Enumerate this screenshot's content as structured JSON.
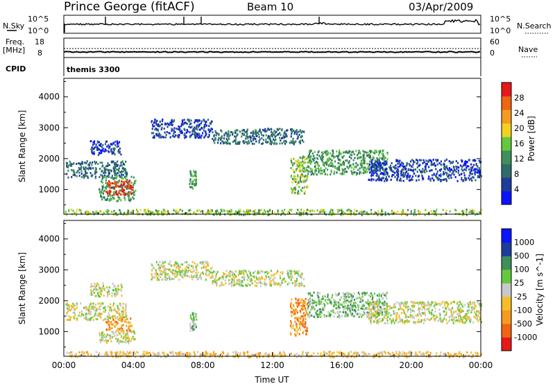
{
  "header": {
    "title": "Prince George (fitACF)",
    "beam": "Beam 10",
    "date": "03/Apr/2009"
  },
  "noise_panel": {
    "left_label": "N.Sky",
    "right_label": "N.Search",
    "left_ticks": [
      "10^5",
      "10^0"
    ],
    "right_ticks": [
      "10^5",
      "10^0"
    ]
  },
  "freq_panel": {
    "left_label_line1": "Freq.",
    "left_label_line2": "[MHz]",
    "right_label": "Nave",
    "left_ticks": [
      "18",
      "8"
    ],
    "right_ticks": [
      "60",
      "0"
    ]
  },
  "cpid_panel": {
    "label": "CPID",
    "program": "themis 3300"
  },
  "colors": {
    "power_scale": [
      "#0a14ff",
      "#1e3c9a",
      "#2f6b6b",
      "#3e8f5a",
      "#64c83c",
      "#f0d020",
      "#f59a1e",
      "#f06414",
      "#e81818"
    ],
    "velocity_scale": [
      "#e81818",
      "#f06414",
      "#f59a1e",
      "#f5be28",
      "#c8c8c8",
      "#64c83c",
      "#3e8f5a",
      "#1e3c9a",
      "#0a14ff"
    ]
  },
  "chart_data": [
    {
      "type": "heatmap",
      "name": "power",
      "ylabel": "Slant Range [km]",
      "colorbar_label": "Power [dB]",
      "colorbar_ticks": [
        "4",
        "8",
        "12",
        "16",
        "20",
        "24",
        "28"
      ],
      "ylim": [
        200,
        4600
      ],
      "y_ticks": [
        "1000",
        "2000",
        "3000",
        "4000"
      ],
      "xlim": [
        0,
        24
      ],
      "x_ticks": [
        "00:00",
        "04:00",
        "08:00",
        "12:00",
        "16:00",
        "20:00",
        "00:00"
      ],
      "echo_regions": [
        {
          "t0": 0.1,
          "t1": 3.6,
          "r0": 1400,
          "r1": 1950,
          "level": 2
        },
        {
          "t0": 1.5,
          "t1": 3.3,
          "r0": 2150,
          "r1": 2600,
          "level": 1
        },
        {
          "t0": 2.0,
          "t1": 4.1,
          "r0": 650,
          "r1": 1450,
          "level": 3
        },
        {
          "t0": 2.4,
          "t1": 3.9,
          "r0": 850,
          "r1": 1300,
          "level": 8
        },
        {
          "t0": 5.0,
          "t1": 8.5,
          "r0": 2700,
          "r1": 3300,
          "level": 1
        },
        {
          "t0": 8.5,
          "t1": 13.8,
          "r0": 2500,
          "r1": 3000,
          "level": 2
        },
        {
          "t0": 7.2,
          "t1": 7.6,
          "r0": 1000,
          "r1": 1650,
          "level": 3
        },
        {
          "t0": 13.0,
          "t1": 14.0,
          "r0": 900,
          "r1": 2100,
          "level": 4
        },
        {
          "t0": 14.0,
          "t1": 18.6,
          "r0": 1500,
          "r1": 2300,
          "level": 3
        },
        {
          "t0": 17.5,
          "t1": 24.0,
          "r0": 1300,
          "r1": 2000,
          "level": 1
        },
        {
          "t0": 0.0,
          "t1": 24.0,
          "r0": 200,
          "r1": 380,
          "level": 4
        }
      ],
      "time_axis_label": "Time UT"
    },
    {
      "type": "heatmap",
      "name": "velocity",
      "ylabel": "Slant Range [km]",
      "colorbar_label": "Velocity [m s^-1]",
      "colorbar_ticks": [
        "-1000",
        "-500",
        "-100",
        "-25",
        "25",
        "100",
        "500",
        "1000"
      ],
      "ylim": [
        200,
        4600
      ],
      "y_ticks": [
        "1000",
        "2000",
        "3000",
        "4000"
      ],
      "xlim": [
        0,
        24
      ],
      "x_ticks": [
        "00:00",
        "04:00",
        "08:00",
        "12:00",
        "16:00",
        "20:00",
        "00:00"
      ],
      "echo_regions": [
        {
          "t0": 0.1,
          "t1": 3.6,
          "r0": 1400,
          "r1": 1950,
          "level": 4
        },
        {
          "t0": 1.5,
          "t1": 3.3,
          "r0": 2150,
          "r1": 2600,
          "level": 4
        },
        {
          "t0": 2.0,
          "t1": 4.1,
          "r0": 650,
          "r1": 1050,
          "level": 4
        },
        {
          "t0": 2.4,
          "t1": 3.9,
          "r0": 1050,
          "r1": 1500,
          "level": 2
        },
        {
          "t0": 5.0,
          "t1": 8.5,
          "r0": 2700,
          "r1": 3300,
          "level": 4
        },
        {
          "t0": 8.5,
          "t1": 13.8,
          "r0": 2500,
          "r1": 3000,
          "level": 4
        },
        {
          "t0": 7.2,
          "t1": 7.6,
          "r0": 1000,
          "r1": 1650,
          "level": 5
        },
        {
          "t0": 13.0,
          "t1": 14.0,
          "r0": 900,
          "r1": 2100,
          "level": 2
        },
        {
          "t0": 14.0,
          "t1": 18.6,
          "r0": 1500,
          "r1": 2300,
          "level": 5
        },
        {
          "t0": 17.5,
          "t1": 24.0,
          "r0": 1300,
          "r1": 2000,
          "level": 4
        },
        {
          "t0": 0.0,
          "t1": 24.0,
          "r0": 200,
          "r1": 380,
          "level": 3
        }
      ],
      "time_axis_label": "Time UT"
    }
  ]
}
